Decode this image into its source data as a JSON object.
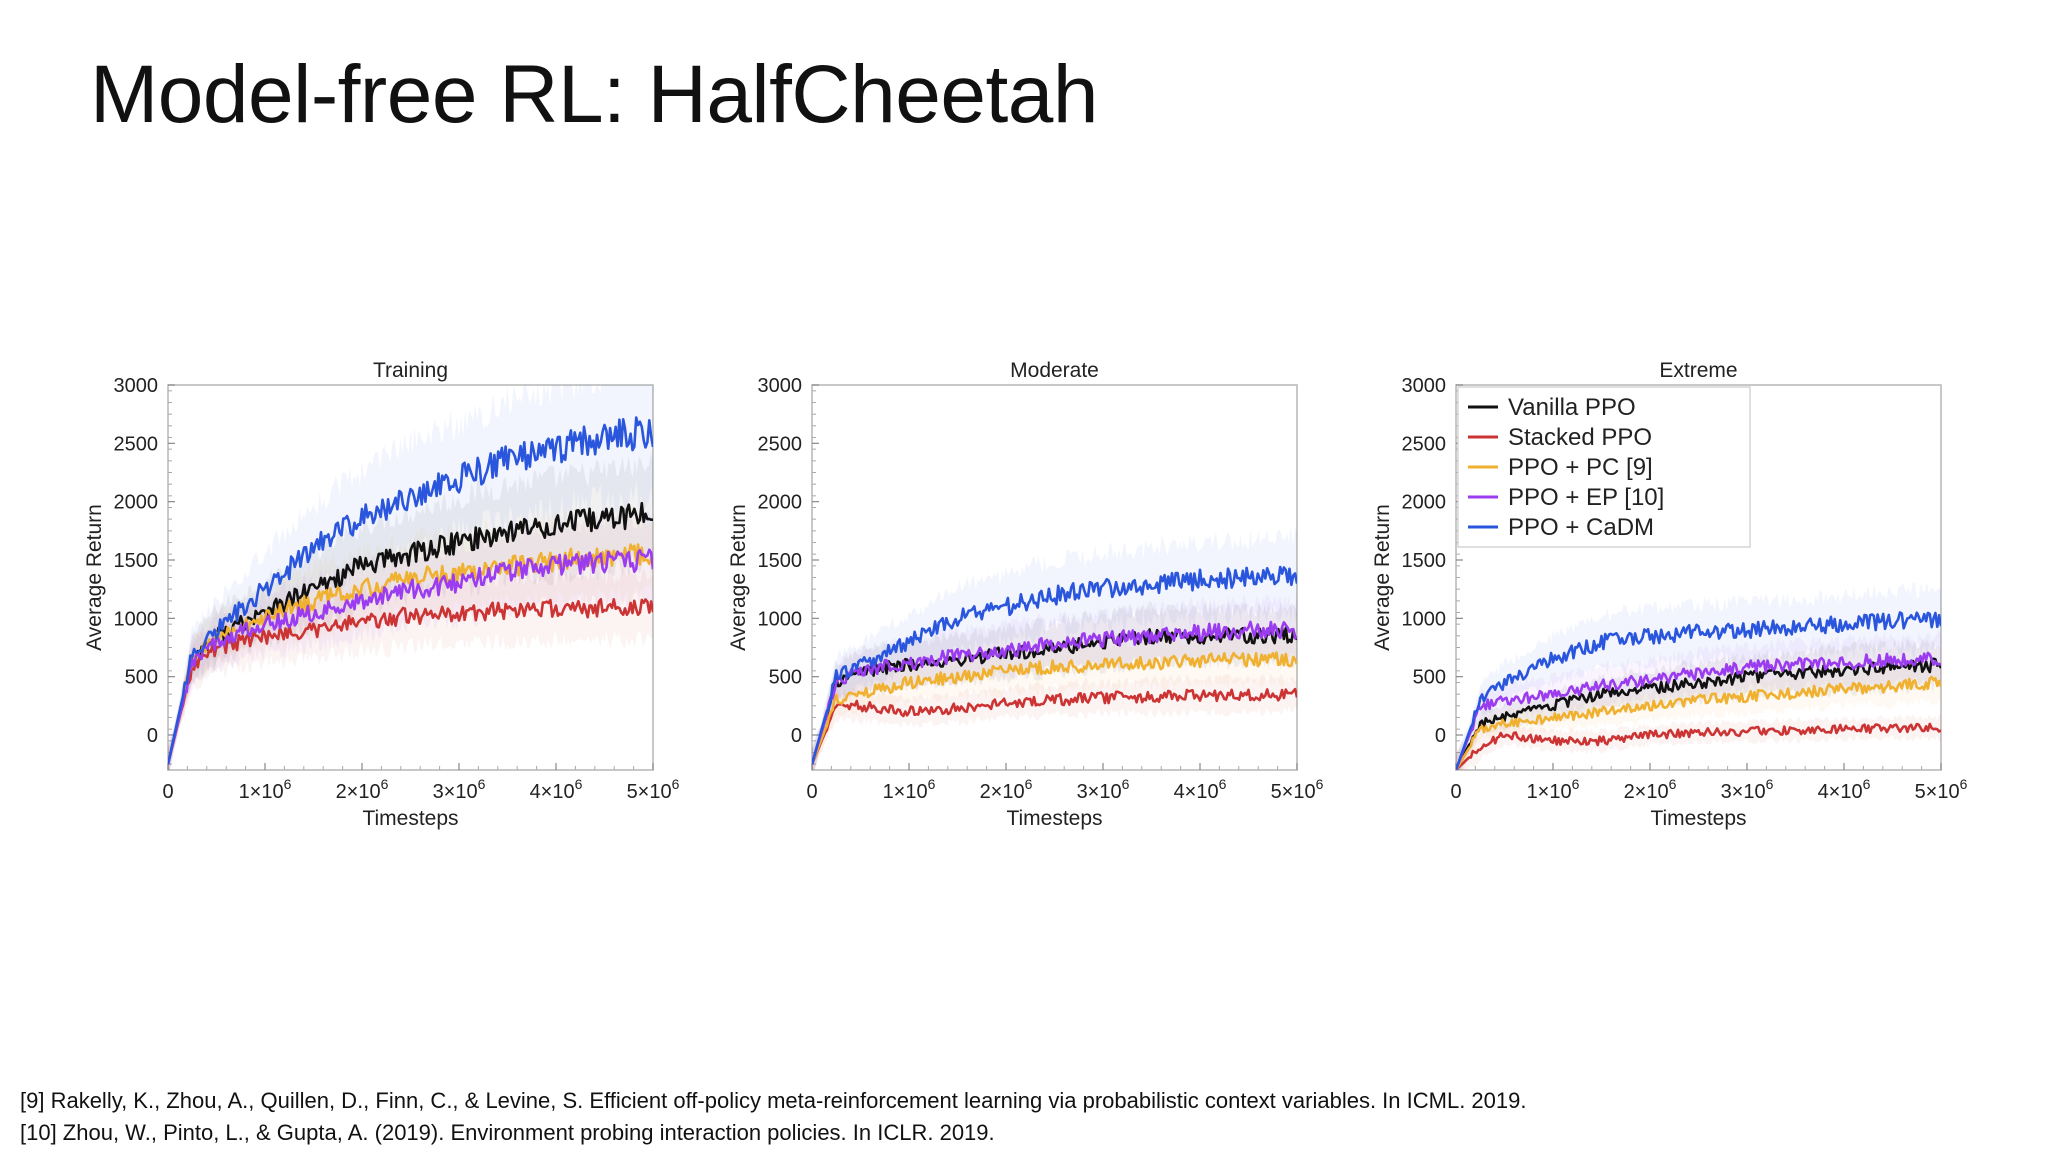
{
  "slide": {
    "title": "Model-free RL: HalfCheetah"
  },
  "references": [
    "[9] Rakelly, K., Zhou, A., Quillen, D., Finn, C., & Levine, S. Efficient off-policy meta-reinforcement learning via probabilistic context variables. In ICML. 2019.",
    "[10] Zhou, W., Pinto, L., & Gupta, A. (2019). Environment probing interaction policies. In ICLR. 2019."
  ],
  "legend": {
    "placement": "top-left of Extreme chart",
    "entries": [
      {
        "name": "Vanilla PPO",
        "color": "#111111"
      },
      {
        "name": "Stacked PPO",
        "color": "#cc3333"
      },
      {
        "name": "PPO + PC [9]",
        "color": "#f0b030"
      },
      {
        "name": "PPO + EP [10]",
        "color": "#9b3cf0"
      },
      {
        "name": "PPO + CaDM",
        "color": "#2a55dd"
      }
    ]
  },
  "chart_data": [
    {
      "type": "line",
      "title": "Training",
      "xlabel": "Timesteps",
      "ylabel": "Average Return",
      "xlim": [
        0,
        5000000
      ],
      "ylim": [
        -300,
        3000
      ],
      "yticks": [
        "0",
        "500",
        "1000",
        "1500",
        "2000",
        "2500",
        "3000"
      ],
      "xticks": [
        "0",
        "1×10",
        "2×10",
        "3×10",
        "4×10",
        "5×10"
      ],
      "xtick_exp": "6",
      "x": [
        0,
        250000,
        500000,
        1000000,
        1500000,
        2000000,
        2500000,
        3000000,
        3500000,
        4000000,
        4500000,
        5000000
      ],
      "series": [
        {
          "name": "Vanilla PPO",
          "color": "#111111",
          "values": [
            -250,
            650,
            850,
            1050,
            1250,
            1450,
            1550,
            1650,
            1750,
            1800,
            1850,
            1900
          ]
        },
        {
          "name": "Stacked PPO",
          "color": "#cc3333",
          "values": [
            -250,
            600,
            750,
            850,
            900,
            980,
            1020,
            1050,
            1070,
            1080,
            1090,
            1100
          ]
        },
        {
          "name": "PPO + PC [9]",
          "color": "#f0b030",
          "values": [
            -250,
            650,
            850,
            1000,
            1150,
            1250,
            1350,
            1400,
            1450,
            1500,
            1520,
            1550
          ]
        },
        {
          "name": "PPO + EP [10]",
          "color": "#9b3cf0",
          "values": [
            -250,
            620,
            800,
            950,
            1050,
            1150,
            1250,
            1300,
            1400,
            1450,
            1480,
            1500
          ]
        },
        {
          "name": "PPO + CaDM",
          "color": "#2a55dd",
          "values": [
            -250,
            700,
            900,
            1250,
            1600,
            1850,
            2050,
            2200,
            2350,
            2450,
            2550,
            2600
          ]
        }
      ]
    },
    {
      "type": "line",
      "title": "Moderate",
      "xlabel": "Timesteps",
      "ylabel": "Average Return",
      "xlim": [
        0,
        5000000
      ],
      "ylim": [
        -300,
        3000
      ],
      "yticks": [
        "0",
        "500",
        "1000",
        "1500",
        "2000",
        "2500",
        "3000"
      ],
      "xticks": [
        "0",
        "1×10",
        "2×10",
        "3×10",
        "4×10",
        "5×10"
      ],
      "xtick_exp": "6",
      "x": [
        0,
        250000,
        500000,
        1000000,
        1500000,
        2000000,
        2500000,
        3000000,
        3500000,
        4000000,
        4500000,
        5000000
      ],
      "series": [
        {
          "name": "Vanilla PPO",
          "color": "#111111",
          "values": [
            -250,
            450,
            550,
            600,
            650,
            700,
            750,
            800,
            850,
            850,
            850,
            850
          ]
        },
        {
          "name": "Stacked PPO",
          "color": "#cc3333",
          "values": [
            -250,
            250,
            250,
            200,
            230,
            280,
            300,
            320,
            330,
            340,
            340,
            350
          ]
        },
        {
          "name": "PPO + PC [9]",
          "color": "#f0b030",
          "values": [
            -250,
            300,
            350,
            450,
            500,
            550,
            580,
            600,
            620,
            640,
            650,
            650
          ]
        },
        {
          "name": "PPO + EP [10]",
          "color": "#9b3cf0",
          "values": [
            -250,
            450,
            550,
            620,
            680,
            730,
            780,
            820,
            850,
            880,
            900,
            900
          ]
        },
        {
          "name": "PPO + CaDM",
          "color": "#2a55dd",
          "values": [
            -250,
            500,
            600,
            800,
            1000,
            1100,
            1200,
            1250,
            1300,
            1330,
            1350,
            1380
          ]
        }
      ]
    },
    {
      "type": "line",
      "title": "Extreme",
      "xlabel": "Timesteps",
      "ylabel": "Average Return",
      "xlim": [
        0,
        5000000
      ],
      "ylim": [
        -300,
        3000
      ],
      "yticks": [
        "0",
        "500",
        "1000",
        "1500",
        "2000",
        "2500",
        "3000"
      ],
      "xticks": [
        "0",
        "1×10",
        "2×10",
        "3×10",
        "4×10",
        "5×10"
      ],
      "xtick_exp": "6",
      "legend": true,
      "x": [
        0,
        250000,
        500000,
        1000000,
        1500000,
        2000000,
        2500000,
        3000000,
        3500000,
        4000000,
        4500000,
        5000000
      ],
      "series": [
        {
          "name": "Vanilla PPO",
          "color": "#111111",
          "values": [
            -300,
            100,
            150,
            250,
            350,
            400,
            450,
            500,
            530,
            560,
            580,
            600
          ]
        },
        {
          "name": "Stacked PPO",
          "color": "#cc3333",
          "values": [
            -300,
            -100,
            0,
            -50,
            -50,
            0,
            20,
            30,
            40,
            50,
            60,
            60
          ]
        },
        {
          "name": "PPO + PC [9]",
          "color": "#f0b030",
          "values": [
            -300,
            50,
            100,
            150,
            200,
            250,
            300,
            330,
            360,
            400,
            420,
            450
          ]
        },
        {
          "name": "PPO + EP [10]",
          "color": "#9b3cf0",
          "values": [
            -300,
            250,
            300,
            350,
            420,
            480,
            530,
            580,
            600,
            620,
            640,
            650
          ]
        },
        {
          "name": "PPO + CaDM",
          "color": "#2a55dd",
          "values": [
            -300,
            300,
            450,
            650,
            800,
            850,
            880,
            900,
            920,
            950,
            980,
            1000
          ]
        }
      ]
    }
  ]
}
